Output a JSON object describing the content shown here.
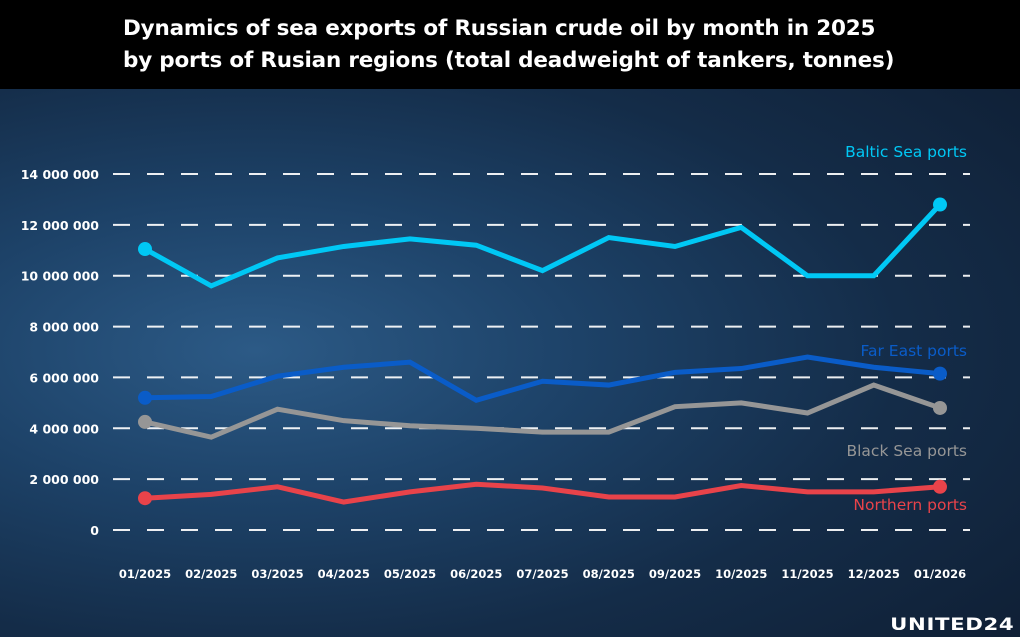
{
  "title": "Dynamics of sea exports of Russian crude oil by month in 2025\nby ports of Rusian regions (total deadweight of tankers, tonnes)",
  "logo": "UNITED24",
  "chart_data": {
    "type": "line",
    "title": "Dynamics of sea exports of Russian crude oil by month in 2025 by ports of Rusian regions (total deadweight of tankers, tonnes)",
    "xlabel": "",
    "ylabel": "",
    "ylim": [
      0,
      14000000
    ],
    "grid": true,
    "grid_style": "dashed",
    "yticks": [
      0,
      2000000,
      4000000,
      6000000,
      8000000,
      10000000,
      12000000,
      14000000
    ],
    "ytick_labels": [
      "0",
      "2 000 000",
      "4 000 000",
      "6 000 000",
      "8 000 000",
      "10 000 000",
      "12 000 000",
      "14 000 000"
    ],
    "categories": [
      "01/2025",
      "02/2025",
      "03/2025",
      "04/2025",
      "05/2025",
      "06/2025",
      "07/2025",
      "08/2025",
      "09/2025",
      "10/2025",
      "11/2025",
      "12/2025",
      "01/2026"
    ],
    "legend": "inline labels at right",
    "series": [
      {
        "name": "Baltic Sea ports",
        "color": "#00c8f5",
        "values": [
          11050000,
          9600000,
          10700000,
          11150000,
          11450000,
          11200000,
          10200000,
          11500000,
          11150000,
          11900000,
          10000000,
          10000000,
          12800000
        ]
      },
      {
        "name": "Far East ports",
        "color": "#0a5cc8",
        "values": [
          5200000,
          5250000,
          6050000,
          6400000,
          6600000,
          5100000,
          5850000,
          5700000,
          6200000,
          6350000,
          6800000,
          6400000,
          6150000
        ]
      },
      {
        "name": "Black Sea ports",
        "color": "#969696",
        "values": [
          4250000,
          3650000,
          4750000,
          4300000,
          4100000,
          4000000,
          3850000,
          3850000,
          4850000,
          5000000,
          4600000,
          5700000,
          4800000
        ]
      },
      {
        "name": "Northern ports",
        "color": "#e8434a",
        "values": [
          1250000,
          1400000,
          1700000,
          1100000,
          1500000,
          1800000,
          1650000,
          1300000,
          1300000,
          1750000,
          1500000,
          1500000,
          1700000
        ]
      }
    ]
  }
}
